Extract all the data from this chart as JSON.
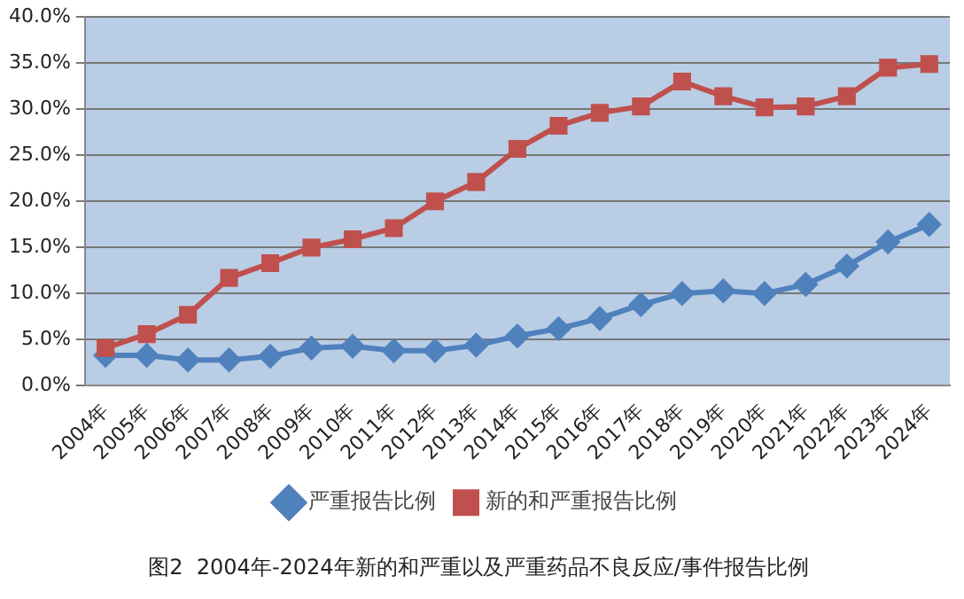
{
  "chart_data": {
    "type": "line",
    "title": "图2  2004年-2024年新的和严重以及严重药品不良反应/事件报告比例",
    "categories": [
      "2004年",
      "2005年",
      "2006年",
      "2007年",
      "2008年",
      "2009年",
      "2010年",
      "2011年",
      "2012年",
      "2013年",
      "2014年",
      "2015年",
      "2016年",
      "2017年",
      "2018年",
      "2019年",
      "2020年",
      "2021年",
      "2022年",
      "2023年",
      "2024年"
    ],
    "series": [
      {
        "name": "严重报告比例",
        "color": "#4f81bd",
        "marker": "diamond",
        "values": [
          3.3,
          3.3,
          2.8,
          2.8,
          3.2,
          4.1,
          4.3,
          3.8,
          3.8,
          4.4,
          5.4,
          6.2,
          7.3,
          8.8,
          10.0,
          10.3,
          10.0,
          11.0,
          13.0,
          15.6,
          17.5
        ]
      },
      {
        "name": "新的和严重报告比例",
        "color": "#c0504d",
        "marker": "square",
        "values": [
          4.1,
          5.6,
          7.7,
          11.7,
          13.3,
          15.0,
          15.9,
          17.1,
          20.0,
          22.1,
          25.7,
          28.2,
          29.6,
          30.3,
          33.0,
          31.4,
          30.2,
          30.3,
          31.4,
          34.5,
          34.9
        ]
      }
    ],
    "ylim": [
      0,
      40
    ],
    "yticks": [
      {
        "value": 0,
        "label": "0.0%"
      },
      {
        "value": 5,
        "label": "5.0%"
      },
      {
        "value": 10,
        "label": "10.0%"
      },
      {
        "value": 15,
        "label": "15.0%"
      },
      {
        "value": 20,
        "label": "20.0%"
      },
      {
        "value": 25,
        "label": "25.0%"
      },
      {
        "value": 30,
        "label": "30.0%"
      },
      {
        "value": 35,
        "label": "35.0%"
      },
      {
        "value": 40,
        "label": "40.0%"
      }
    ],
    "grid": "y",
    "legend": "bottom",
    "line_style": "solid"
  }
}
